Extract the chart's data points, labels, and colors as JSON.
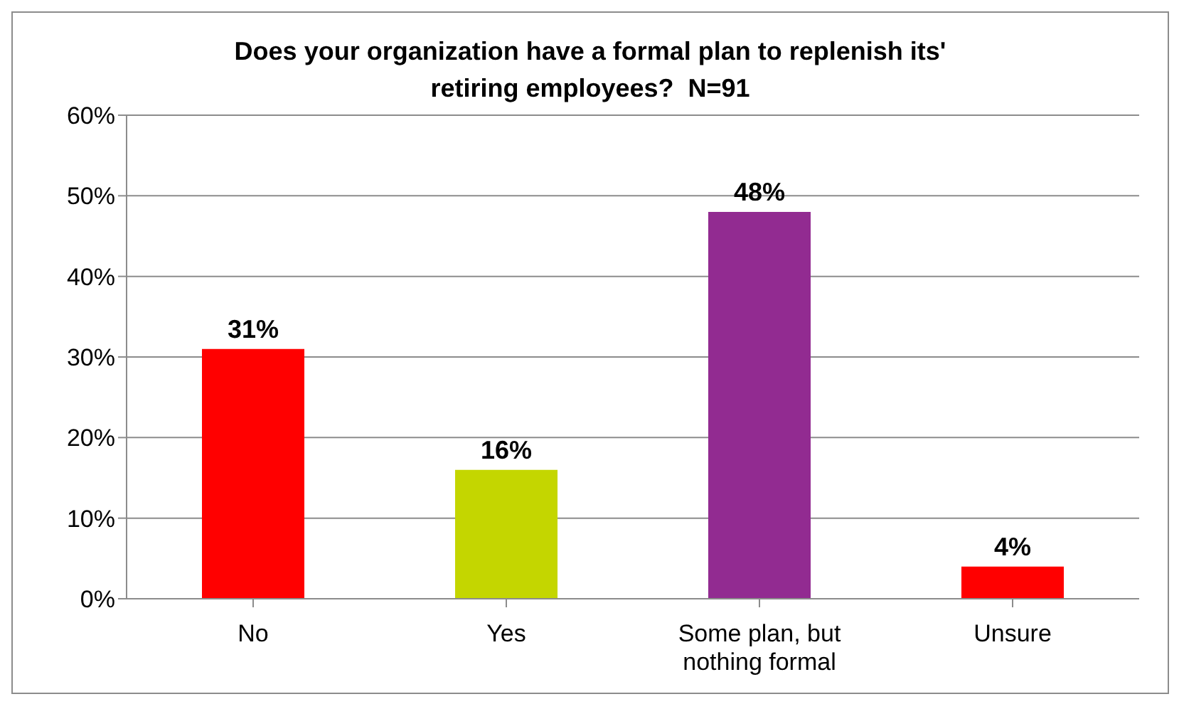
{
  "chart_data": {
    "type": "bar",
    "title": "Does your organization have a formal plan to replenish its' retiring employees?  N=91",
    "categories": [
      "No",
      "Yes",
      "Some plan, but nothing formal",
      "Unsure"
    ],
    "values": [
      31,
      16,
      48,
      4
    ],
    "colors": [
      "#ff0000",
      "#c4d600",
      "#922b91",
      "#ff0000"
    ],
    "value_labels": [
      "31%",
      "16%",
      "48%",
      "4%"
    ],
    "ylim": [
      0,
      60
    ],
    "yticks": [
      {
        "value": 0,
        "label": "0%"
      },
      {
        "value": 10,
        "label": "10%"
      },
      {
        "value": 20,
        "label": "20%"
      },
      {
        "value": 30,
        "label": "30%"
      },
      {
        "value": 40,
        "label": "40%"
      },
      {
        "value": 50,
        "label": "50%"
      },
      {
        "value": 60,
        "label": "60%"
      }
    ],
    "grid": "y",
    "legend": false
  }
}
